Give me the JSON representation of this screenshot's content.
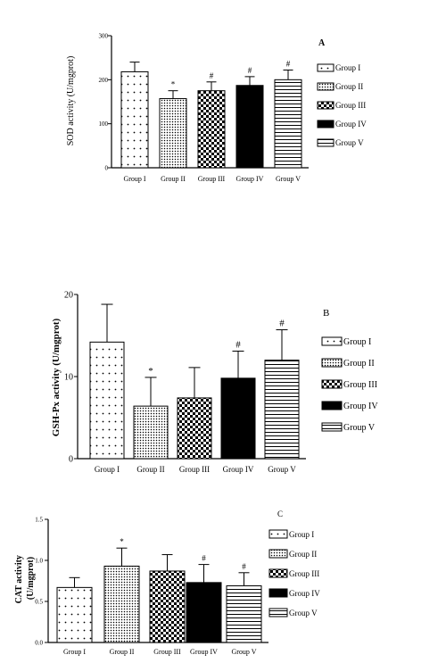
{
  "colors": {
    "axis": "#000000",
    "bar_outline": "#000000",
    "error_bar": "#000000"
  },
  "patterns": {
    "Group I": "sparse-dots",
    "Group II": "dense-dots",
    "Group III": "checkerboard",
    "Group IV": "solid-black",
    "Group V": "horizontal-lines"
  },
  "chart_data": [
    {
      "panel": "A",
      "type": "bar",
      "ylabel": "SOD activity (U/mgprot)",
      "ylim": [
        0,
        300
      ],
      "yticks": [
        "0",
        "100",
        "200",
        "300"
      ],
      "categories": [
        "Group I",
        "Group II",
        "Group III",
        "Group IV",
        "Group V"
      ],
      "values": [
        218,
        157,
        175,
        187,
        200
      ],
      "errors": [
        22,
        18,
        20,
        20,
        22
      ],
      "annotations": [
        "",
        "*",
        "#",
        "#",
        "#"
      ],
      "legend": [
        "Group I",
        "Group II",
        "Group III",
        "Group IV",
        "Group V"
      ],
      "legend_position": "right",
      "grid": false
    },
    {
      "panel": "B",
      "type": "bar",
      "ylabel": "GSH-Px activity (U/mgprot)",
      "ylim": [
        0,
        20
      ],
      "yticks": [
        "0",
        "10",
        "20"
      ],
      "categories": [
        "Group I",
        "Group II",
        "Group III",
        "Group IV",
        "Group V"
      ],
      "values": [
        14.2,
        6.4,
        7.4,
        9.8,
        12.0
      ],
      "errors": [
        4.6,
        3.5,
        3.7,
        3.3,
        3.7
      ],
      "annotations": [
        "",
        "*",
        "",
        "#",
        "#"
      ],
      "legend": [
        "Group I",
        "Group II",
        "Group III",
        "Group IV",
        "Group V"
      ],
      "legend_position": "right",
      "grid": false
    },
    {
      "panel": "C",
      "type": "bar",
      "ylabel": "CAT activity (U/mgprot)",
      "ylim": [
        0,
        1.5
      ],
      "yticks": [
        "0.0",
        "0.5",
        "1.0",
        "1.5"
      ],
      "categories": [
        "Group I",
        "Group II",
        "Group III",
        "Group IV",
        "Group V"
      ],
      "values": [
        0.67,
        0.93,
        0.87,
        0.73,
        0.69
      ],
      "errors": [
        0.12,
        0.22,
        0.2,
        0.22,
        0.16
      ],
      "annotations": [
        "",
        "*",
        "",
        "#",
        "#"
      ],
      "legend": [
        "Group I",
        "Group II",
        "Group III",
        "Group IV",
        "Group V"
      ],
      "legend_position": "right",
      "grid": false
    }
  ]
}
